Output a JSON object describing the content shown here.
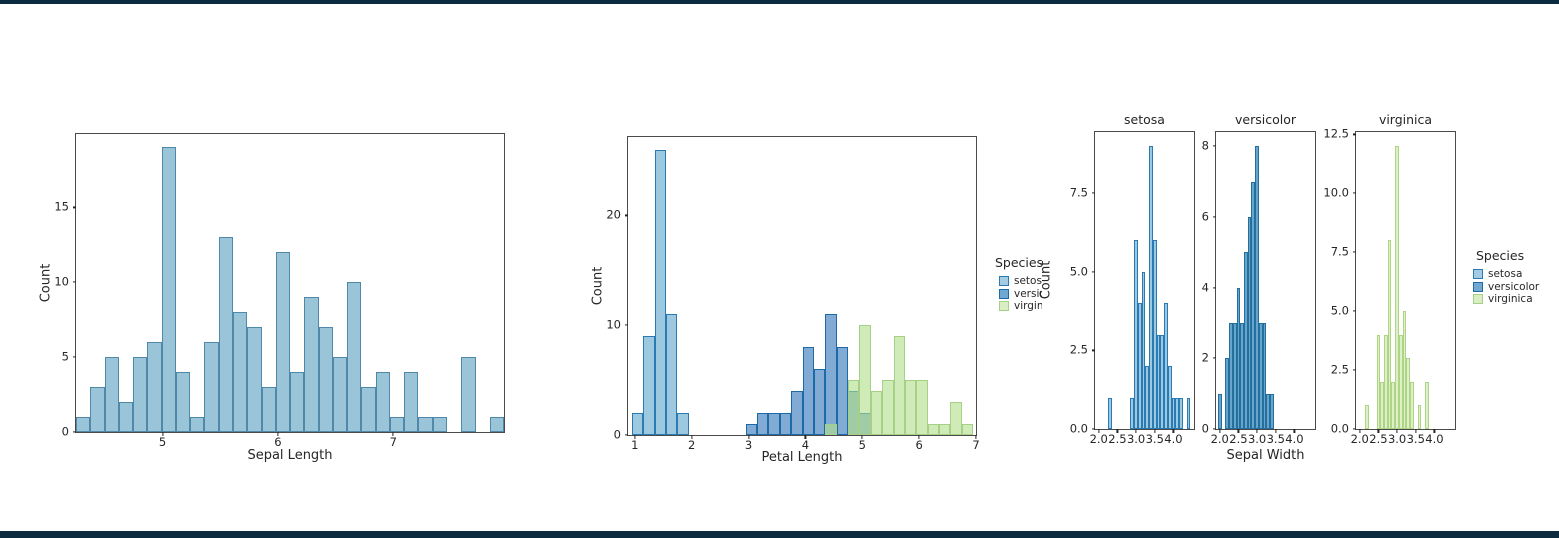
{
  "window": {
    "background": "#ffffff",
    "top_bar_color": "#0d2b3f",
    "bottom_bar_color": "#0d2b3f"
  },
  "chart_data": [
    {
      "type": "bar",
      "subtype": "histogram",
      "title": "",
      "xlabel": "Sepal Length",
      "ylabel": "Count",
      "grid": false,
      "xlim": [
        4.25,
        7.96
      ],
      "ylim": [
        0,
        19.9
      ],
      "x_ticks": [
        {
          "v": 5,
          "label": "5"
        },
        {
          "v": 6,
          "label": "6"
        },
        {
          "v": 7,
          "label": "7"
        }
      ],
      "y_ticks": [
        {
          "v": 0,
          "label": "0"
        },
        {
          "v": 5,
          "label": "5"
        },
        {
          "v": 10,
          "label": "10"
        },
        {
          "v": 15,
          "label": "15"
        }
      ],
      "bin_start": 4.25,
      "bin_width": 0.1237,
      "counts": [
        1,
        3,
        5,
        2,
        5,
        6,
        19,
        4,
        1,
        6,
        13,
        8,
        7,
        3,
        12,
        4,
        9,
        7,
        5,
        10,
        3,
        4,
        1,
        4,
        1,
        1,
        0,
        5,
        0,
        1
      ],
      "fill": "#9ac5d9",
      "edge": "#4f88a8"
    },
    {
      "type": "bar",
      "subtype": "layered-histogram",
      "title": "",
      "xlabel": "Petal Length",
      "ylabel": "Count",
      "grid": false,
      "xlim": [
        0.88,
        7.0
      ],
      "ylim": [
        0,
        27.15
      ],
      "x_ticks": [
        {
          "v": 1,
          "label": "1"
        },
        {
          "v": 2,
          "label": "2"
        },
        {
          "v": 3,
          "label": "3"
        },
        {
          "v": 4,
          "label": "4"
        },
        {
          "v": 5,
          "label": "5"
        },
        {
          "v": 6,
          "label": "6"
        },
        {
          "v": 7,
          "label": "7"
        }
      ],
      "y_ticks": [
        {
          "v": 0,
          "label": "0"
        },
        {
          "v": 10,
          "label": "10"
        },
        {
          "v": 20,
          "label": "20"
        }
      ],
      "series": [
        {
          "name": "setosa",
          "bin_start": 0.95,
          "bin_width": 0.2,
          "counts": [
            2,
            9,
            26,
            11,
            2
          ],
          "fill": "#9cc8e0",
          "edge": "#2a7ab4"
        },
        {
          "name": "versicolor",
          "bin_start": 2.95,
          "bin_width": 0.2,
          "counts": [
            1,
            2,
            2,
            2,
            4,
            8,
            6,
            11,
            8,
            4,
            2
          ],
          "fill": "rgba(25,101,176,0.55)",
          "edge": "#1c6ba8"
        },
        {
          "name": "virginica",
          "bin_start": 4.35,
          "bin_width": 0.2,
          "counts": [
            1,
            0,
            5,
            10,
            4,
            5,
            9,
            5,
            5,
            1,
            1,
            3,
            1
          ],
          "fill": "rgba(178,223,138,0.62)",
          "edge": "#a5d086"
        }
      ],
      "legend": {
        "title": "Species",
        "items": [
          {
            "label": "setosa",
            "fill": "#a3cbe1",
            "edge": "#2a7ab4"
          },
          {
            "label": "versicolor",
            "fill": "#6fa9d1",
            "edge": "#1c6ba8"
          },
          {
            "label": "virginica",
            "fill": "#d9eec4",
            "edge": "#a5d086"
          }
        ]
      }
    },
    {
      "type": "bar",
      "subtype": "faceted-histogram",
      "title": "",
      "xlabel": "Sepal Width",
      "ylabel": "Count",
      "grid": false,
      "xlim": [
        1.9,
        4.55
      ],
      "bin_width": 0.1,
      "x_ticks": [
        {
          "v": 2.0,
          "label": "2.0"
        },
        {
          "v": 2.5,
          "label": "2.5"
        },
        {
          "v": 3.0,
          "label": "3.0"
        },
        {
          "v": 3.5,
          "label": "3.5"
        },
        {
          "v": 4.0,
          "label": "4.0"
        }
      ],
      "facets": [
        {
          "title": "setosa",
          "ylim": [
            0,
            9.45
          ],
          "y_ticks": [
            {
              "v": 0,
              "label": "0.0"
            },
            {
              "v": 2.5,
              "label": "2.5"
            },
            {
              "v": 5,
              "label": "5.0"
            },
            {
              "v": 7.5,
              "label": "7.5"
            }
          ],
          "bars": [
            {
              "x": 2.3,
              "h": 1
            },
            {
              "x": 2.9,
              "h": 1
            },
            {
              "x": 3.0,
              "h": 6
            },
            {
              "x": 3.1,
              "h": 4
            },
            {
              "x": 3.2,
              "h": 5
            },
            {
              "x": 3.3,
              "h": 2
            },
            {
              "x": 3.4,
              "h": 9
            },
            {
              "x": 3.5,
              "h": 6
            },
            {
              "x": 3.6,
              "h": 3
            },
            {
              "x": 3.7,
              "h": 3
            },
            {
              "x": 3.8,
              "h": 4
            },
            {
              "x": 3.9,
              "h": 2
            },
            {
              "x": 4.0,
              "h": 1
            },
            {
              "x": 4.1,
              "h": 1
            },
            {
              "x": 4.2,
              "h": 1
            },
            {
              "x": 4.4,
              "h": 1
            }
          ],
          "fill": "#9cc8e0",
          "edge": "#2a7ab4"
        },
        {
          "title": "versicolor",
          "ylim": [
            0,
            8.4
          ],
          "y_ticks": [
            {
              "v": 0,
              "label": "0"
            },
            {
              "v": 2,
              "label": "2"
            },
            {
              "v": 4,
              "label": "4"
            },
            {
              "v": 6,
              "label": "6"
            },
            {
              "v": 8,
              "label": "8"
            }
          ],
          "bars": [
            {
              "x": 2.0,
              "h": 1
            },
            {
              "x": 2.2,
              "h": 2
            },
            {
              "x": 2.3,
              "h": 3
            },
            {
              "x": 2.4,
              "h": 3
            },
            {
              "x": 2.5,
              "h": 4
            },
            {
              "x": 2.6,
              "h": 3
            },
            {
              "x": 2.7,
              "h": 5
            },
            {
              "x": 2.8,
              "h": 6
            },
            {
              "x": 2.9,
              "h": 7
            },
            {
              "x": 3.0,
              "h": 8
            },
            {
              "x": 3.1,
              "h": 3
            },
            {
              "x": 3.2,
              "h": 3
            },
            {
              "x": 3.3,
              "h": 1
            },
            {
              "x": 3.4,
              "h": 1
            }
          ],
          "fill": "#68a5cd",
          "edge": "#23709f"
        },
        {
          "title": "virginica",
          "ylim": [
            0,
            12.6
          ],
          "y_ticks": [
            {
              "v": 0,
              "label": "0.0"
            },
            {
              "v": 2.5,
              "label": "2.5"
            },
            {
              "v": 5,
              "label": "5.0"
            },
            {
              "v": 7.5,
              "label": "7.5"
            },
            {
              "v": 10,
              "label": "10.0"
            },
            {
              "v": 12.5,
              "label": "12.5"
            }
          ],
          "bars": [
            {
              "x": 2.2,
              "h": 1
            },
            {
              "x": 2.5,
              "h": 4
            },
            {
              "x": 2.6,
              "h": 2
            },
            {
              "x": 2.7,
              "h": 4
            },
            {
              "x": 2.8,
              "h": 8
            },
            {
              "x": 2.9,
              "h": 2
            },
            {
              "x": 3.0,
              "h": 12
            },
            {
              "x": 3.1,
              "h": 4
            },
            {
              "x": 3.2,
              "h": 5
            },
            {
              "x": 3.3,
              "h": 3
            },
            {
              "x": 3.4,
              "h": 2
            },
            {
              "x": 3.6,
              "h": 1
            },
            {
              "x": 3.8,
              "h": 2
            }
          ],
          "fill": "#ddf0ca",
          "edge": "#aed584"
        }
      ],
      "legend": {
        "title": "Species",
        "items": [
          {
            "label": "setosa",
            "fill": "#a3cbe1",
            "edge": "#2a7ab4"
          },
          {
            "label": "versicolor",
            "fill": "#6fa9d1",
            "edge": "#1c6ba8"
          },
          {
            "label": "virginica",
            "fill": "#d9eec4",
            "edge": "#a5d086"
          }
        ]
      }
    }
  ]
}
